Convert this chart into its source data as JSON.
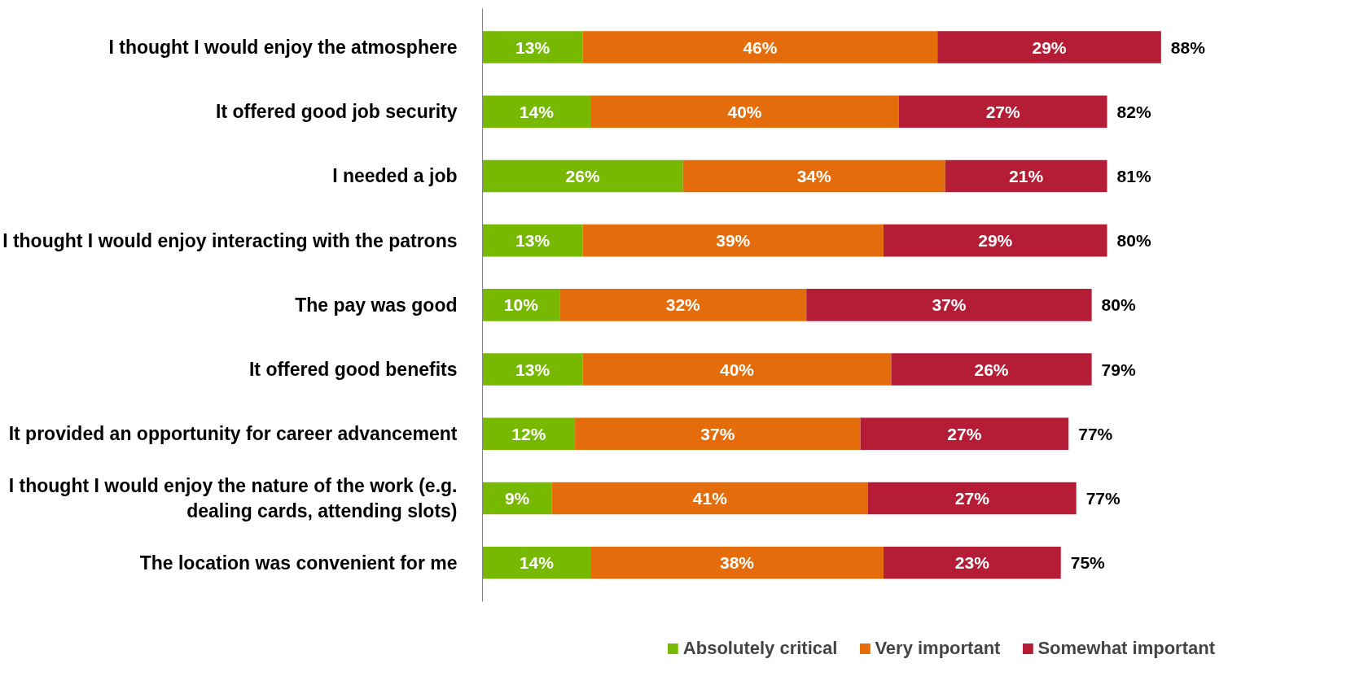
{
  "chart_data": {
    "type": "bar",
    "orientation": "horizontal",
    "stacked": true,
    "grid": false,
    "legend": "bottom",
    "tick_labels": "y",
    "categories": [
      "I thought I would enjoy the atmosphere",
      "It offered good job security",
      "I needed a job",
      "I thought I would enjoy interacting with the patrons",
      "The pay was good",
      "It offered good benefits",
      "It provided an opportunity for career advancement",
      "I thought I would enjoy the nature of the work (e.g. dealing cards, attending slots)",
      "The location was convenient for me"
    ],
    "series": [
      {
        "name": "Absolutely critical",
        "color": "#76b900",
        "values": [
          13,
          14,
          26,
          13,
          10,
          13,
          12,
          9,
          14
        ],
        "value_labels": [
          "13%",
          "14%",
          "26%",
          "13%",
          "10%",
          "13%",
          "12%",
          "9%",
          "14%"
        ]
      },
      {
        "name": "Very important",
        "color": "#e46c0a",
        "values": [
          46,
          40,
          34,
          39,
          32,
          40,
          37,
          41,
          38
        ],
        "value_labels": [
          "46%",
          "40%",
          "34%",
          "39%",
          "32%",
          "40%",
          "37%",
          "41%",
          "38%"
        ]
      },
      {
        "name": "Somewhat important",
        "color": "#b51c35",
        "values": [
          29,
          27,
          21,
          29,
          37,
          26,
          27,
          27,
          23
        ],
        "value_labels": [
          "29%",
          "27%",
          "21%",
          "29%",
          "37%",
          "26%",
          "27%",
          "27%",
          "23%"
        ]
      }
    ],
    "totals": [
      "88%",
      "82%",
      "81%",
      "80%",
      "80%",
      "79%",
      "77%",
      "77%",
      "75%"
    ]
  }
}
